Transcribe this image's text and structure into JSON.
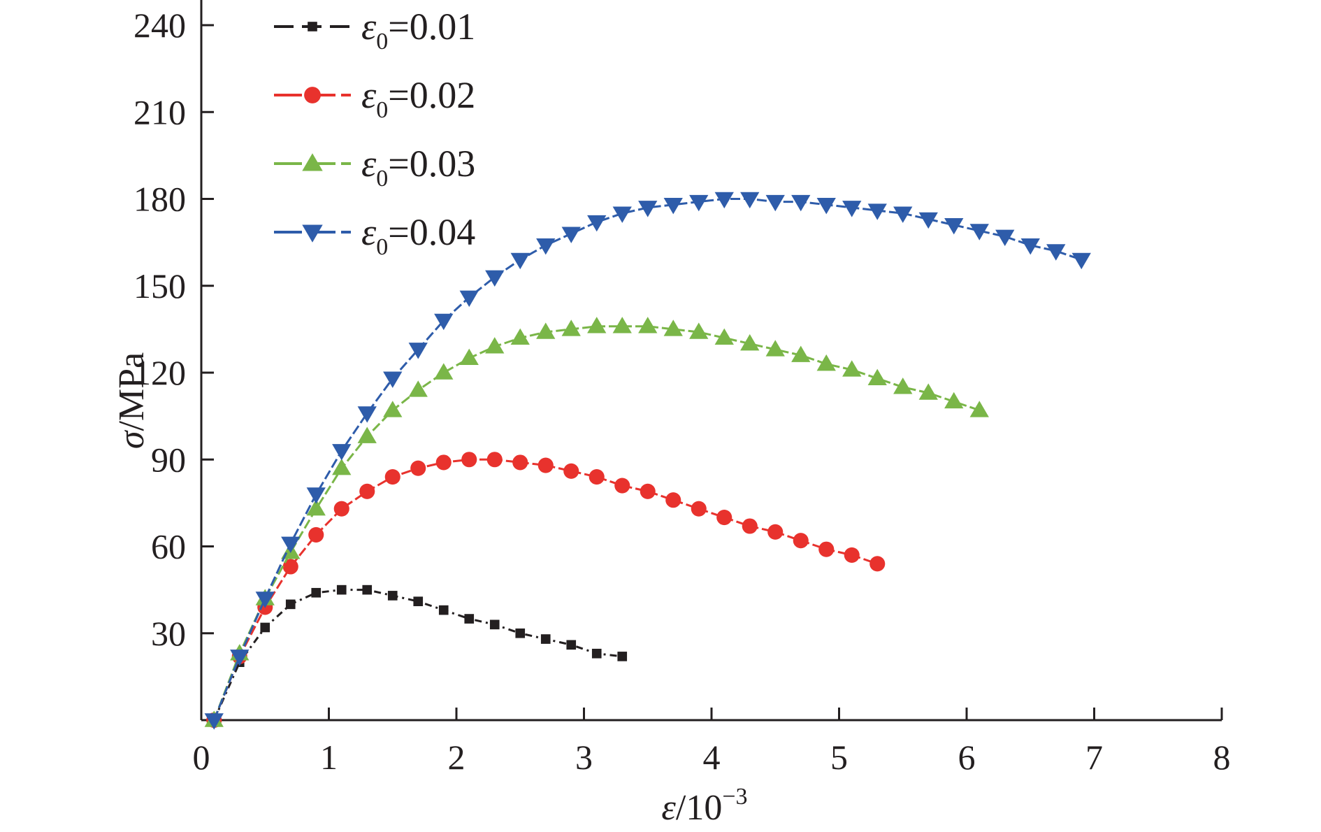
{
  "chart_data": {
    "type": "line",
    "xlabel": {
      "symbol": "ε",
      "text": "/10",
      "sup": "−3"
    },
    "ylabel": {
      "symbol": "σ",
      "text": "/MPa"
    },
    "xlim": [
      0,
      8
    ],
    "ylim": [
      0,
      240
    ],
    "x_ticks": [
      0,
      1,
      2,
      3,
      4,
      5,
      6,
      7,
      8
    ],
    "y_ticks": [
      30,
      60,
      90,
      120,
      150,
      180,
      210,
      240
    ],
    "x_tick_labels": [
      "0",
      "1",
      "2",
      "3",
      "4",
      "5",
      "6",
      "7",
      "8"
    ],
    "y_tick_labels": [
      "30",
      "60",
      "90",
      "120",
      "150",
      "180",
      "210",
      "240"
    ],
    "grid": false,
    "legend_position": "top-left",
    "series": [
      {
        "name": "ε0=0.01",
        "label": {
          "symbol": "ε",
          "sub": "0",
          "value": "=0.01"
        },
        "color": "#231f20",
        "marker": "square",
        "line": "dash-dot",
        "x": [
          0.1,
          0.3,
          0.5,
          0.7,
          0.9,
          1.1,
          1.3,
          1.5,
          1.7,
          1.9,
          2.1,
          2.3,
          2.5,
          2.7,
          2.9,
          3.1,
          3.3
        ],
        "y": [
          0,
          20,
          32,
          40,
          44,
          45,
          45,
          43,
          41,
          38,
          35,
          33,
          30,
          28,
          26,
          23,
          22
        ]
      },
      {
        "name": "ε0=0.02",
        "label": {
          "symbol": "ε",
          "sub": "0",
          "value": "=0.02"
        },
        "color": "#e8322d",
        "marker": "circle",
        "line": "dash",
        "x": [
          0.1,
          0.3,
          0.5,
          0.7,
          0.9,
          1.1,
          1.3,
          1.5,
          1.7,
          1.9,
          2.1,
          2.3,
          2.5,
          2.7,
          2.9,
          3.1,
          3.3,
          3.5,
          3.7,
          3.9,
          4.1,
          4.3,
          4.5,
          4.7,
          4.9,
          5.1,
          5.3
        ],
        "y": [
          0,
          22,
          39,
          53,
          64,
          73,
          79,
          84,
          87,
          89,
          90,
          90,
          89,
          88,
          86,
          84,
          81,
          79,
          76,
          73,
          70,
          67,
          65,
          62,
          59,
          57,
          54
        ]
      },
      {
        "name": "ε0=0.03",
        "label": {
          "symbol": "ε",
          "sub": "0",
          "value": "=0.03"
        },
        "color": "#7ab648",
        "marker": "triangle-up",
        "line": "dash",
        "x": [
          0.1,
          0.3,
          0.5,
          0.7,
          0.9,
          1.1,
          1.3,
          1.5,
          1.7,
          1.9,
          2.1,
          2.3,
          2.5,
          2.7,
          2.9,
          3.1,
          3.3,
          3.5,
          3.7,
          3.9,
          4.1,
          4.3,
          4.5,
          4.7,
          4.9,
          5.1,
          5.3,
          5.5,
          5.7,
          5.9,
          6.1
        ],
        "y": [
          0,
          23,
          42,
          58,
          73,
          87,
          98,
          107,
          114,
          120,
          125,
          129,
          132,
          134,
          135,
          136,
          136,
          136,
          135,
          134,
          132,
          130,
          128,
          126,
          123,
          121,
          118,
          115,
          113,
          110,
          107
        ]
      },
      {
        "name": "ε0=0.04",
        "label": {
          "symbol": "ε",
          "sub": "0",
          "value": "=0.04"
        },
        "color": "#2e5caa",
        "marker": "triangle-down",
        "line": "dash",
        "x": [
          0.1,
          0.3,
          0.5,
          0.7,
          0.9,
          1.1,
          1.3,
          1.5,
          1.7,
          1.9,
          2.1,
          2.3,
          2.5,
          2.7,
          2.9,
          3.1,
          3.3,
          3.5,
          3.7,
          3.9,
          4.1,
          4.3,
          4.5,
          4.7,
          4.9,
          5.1,
          5.3,
          5.5,
          5.7,
          5.9,
          6.1,
          6.3,
          6.5,
          6.7,
          6.9
        ],
        "y": [
          0,
          22,
          42,
          61,
          78,
          93,
          106,
          118,
          128,
          138,
          146,
          153,
          159,
          164,
          168,
          172,
          175,
          177,
          178,
          179,
          180,
          180,
          179,
          179,
          178,
          177,
          176,
          175,
          173,
          171,
          169,
          167,
          164,
          162,
          159
        ]
      }
    ]
  }
}
